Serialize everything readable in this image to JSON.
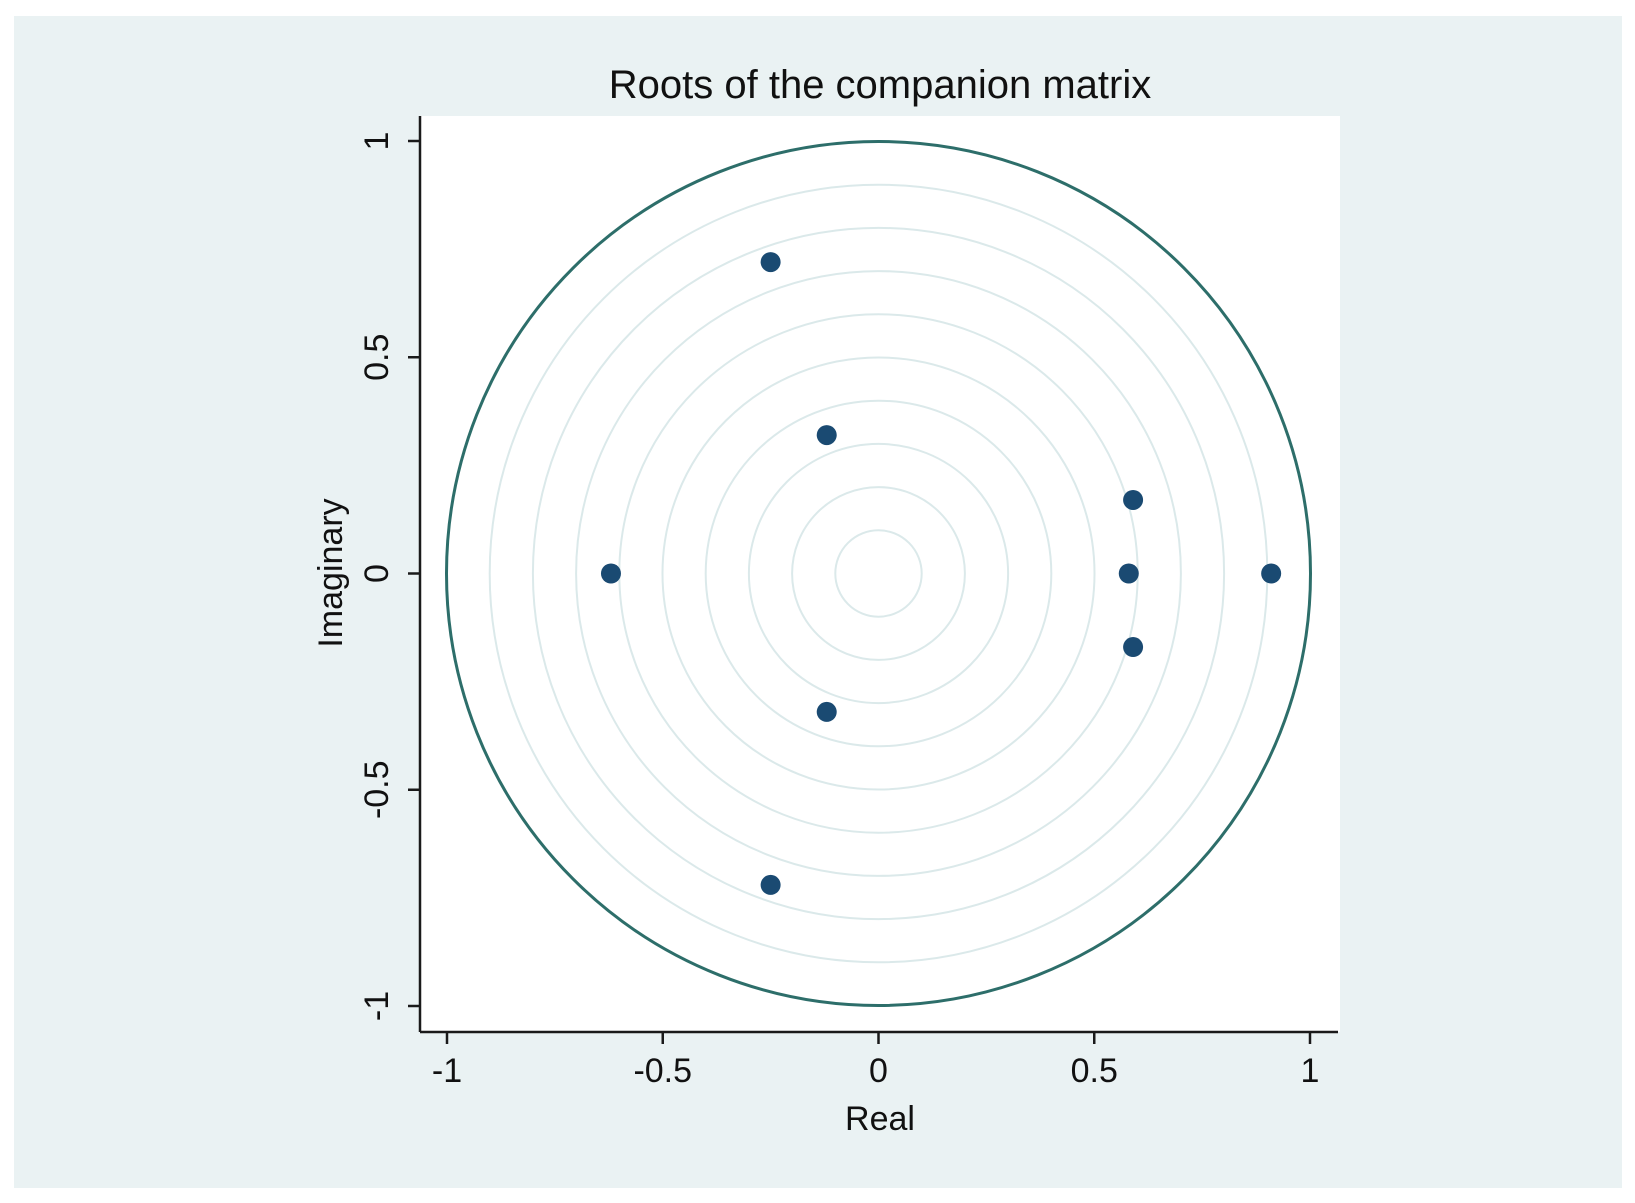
{
  "chart_data": {
    "type": "scatter",
    "title": "Roots of the companion matrix",
    "xlabel": "Real",
    "ylabel": "Imaginary",
    "xlim": [
      -1,
      1
    ],
    "ylim": [
      -1,
      1
    ],
    "xticks": [
      "-1",
      "-0.5",
      "0",
      "0.5",
      "1"
    ],
    "yticks": [
      "-1",
      "-0.5",
      "0",
      "0.5",
      "1"
    ],
    "xtick_values": [
      -1,
      -0.5,
      0,
      0.5,
      1
    ],
    "ytick_values": [
      -1,
      -0.5,
      0,
      0.5,
      1
    ],
    "unit_circle": true,
    "grid": "concentric circles",
    "colors": {
      "background": "#eaf2f3",
      "plot_area": "#ffffff",
      "unit_circle": "#2d6e6a",
      "grid": "#dbe9ea",
      "points": "#1a4a72"
    },
    "series": [
      {
        "x": [
          -0.25,
          -0.25,
          -0.12,
          -0.12,
          -0.62,
          0.59,
          0.59,
          0.58,
          0.91
        ],
        "y": [
          0.72,
          -0.72,
          0.32,
          -0.32,
          0.0,
          0.17,
          -0.17,
          0.0,
          0.0
        ]
      }
    ]
  }
}
